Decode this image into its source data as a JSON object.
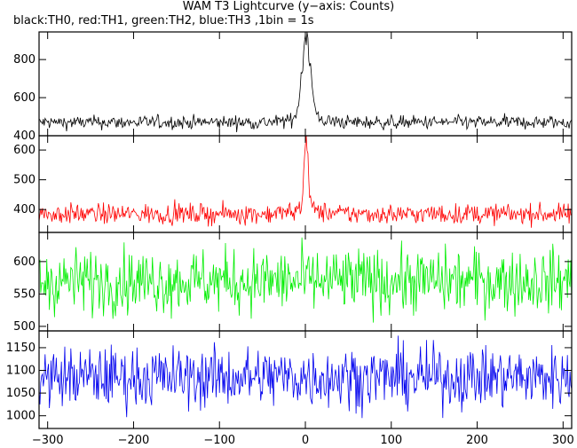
{
  "chart_data": {
    "type": "line",
    "title": "WAM T3 Lightcurve (y−axis: Counts)",
    "subtitle": "black:TH0, red:TH1, green:TH2, blue:TH3 ,1bin = 1s",
    "x_ticks": [
      -300,
      -200,
      -100,
      0,
      100,
      200,
      300
    ],
    "xlim": [
      -310,
      310
    ],
    "panels": [
      {
        "name": "TH0",
        "color": "#000000",
        "ylim": [
          400,
          945
        ],
        "y_ticks": [
          400,
          600,
          800
        ],
        "baseline": 470,
        "noise": 18,
        "peak": 930,
        "peak_width": 5
      },
      {
        "name": "TH1",
        "color": "#ff0000",
        "ylim": [
          323,
          648
        ],
        "y_ticks": [
          400,
          500,
          600
        ],
        "baseline": 385,
        "noise": 17,
        "peak": 640,
        "peak_width": 2.5
      },
      {
        "name": "TH2",
        "color": "#00ee00",
        "ylim": [
          493,
          645
        ],
        "y_ticks": [
          500,
          550,
          600
        ],
        "baseline": 570,
        "noise": 25,
        "peak": null,
        "peak_width": 0
      },
      {
        "name": "TH3",
        "color": "#0000ee",
        "ylim": [
          972,
          1187
        ],
        "y_ticks": [
          1000,
          1050,
          1100,
          1150
        ],
        "baseline": 1085,
        "noise": 34,
        "peak": null,
        "peak_width": 0
      }
    ]
  }
}
